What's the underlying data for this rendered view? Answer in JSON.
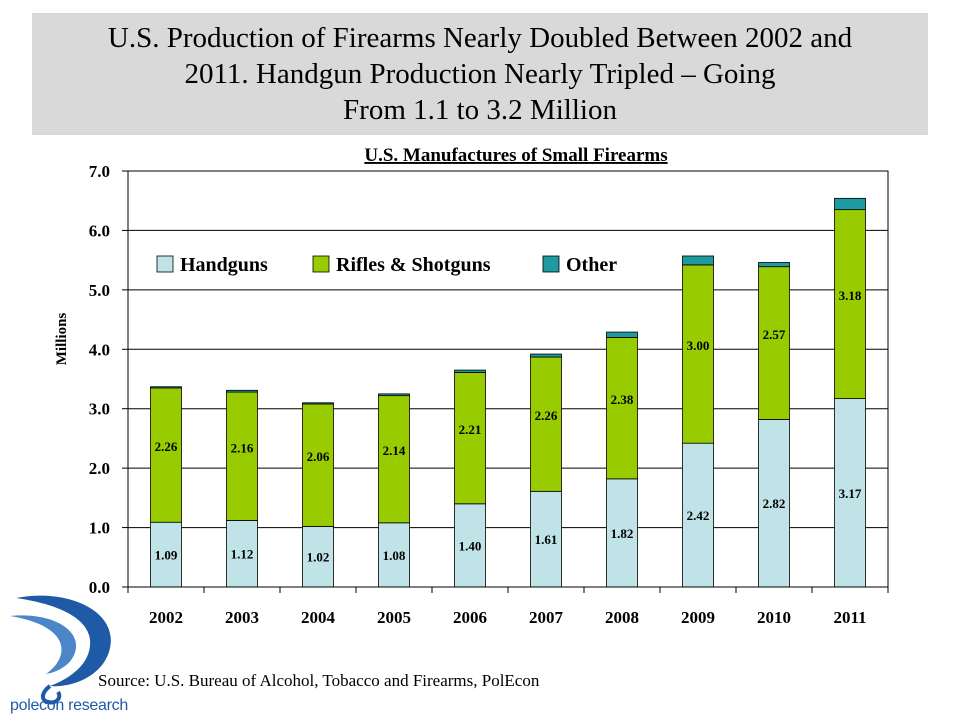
{
  "header": {
    "lines": [
      "U.S. Production of Firearms Nearly Doubled Between 2002 and",
      "2011.  Handgun Production Nearly Tripled – Going",
      "From 1.1 to 3.2 Million"
    ]
  },
  "source": "Source: U.S. Bureau of Alcohol, Tobacco and Firearms, PolEcon",
  "logo": {
    "text": "polecon research",
    "icon": "polecon-swirl-logo-icon"
  },
  "colors": {
    "handguns": "#bfe3e6",
    "rifles": "#99cc00",
    "other": "#1f9aa0",
    "grid": "#000000",
    "header_bg": "#d9d9d9"
  },
  "chart_data": {
    "type": "bar",
    "stacked": true,
    "title": "U.S. Manufactures of Small Firearms",
    "ylabel": "Millions",
    "xlabel": "",
    "ylim": [
      0,
      7
    ],
    "yticks": [
      "0.0",
      "1.0",
      "2.0",
      "3.0",
      "4.0",
      "5.0",
      "6.0",
      "7.0"
    ],
    "grid": true,
    "legend_position": "top-left",
    "categories": [
      "2002",
      "2003",
      "2004",
      "2005",
      "2006",
      "2007",
      "2008",
      "2009",
      "2010",
      "2011"
    ],
    "series": [
      {
        "name": "Handguns",
        "values": [
          1.09,
          1.12,
          1.02,
          1.08,
          1.4,
          1.61,
          1.82,
          2.42,
          2.82,
          3.17
        ],
        "labels": [
          "1.09",
          "1.12",
          "1.02",
          "1.08",
          "1.40",
          "1.61",
          "1.82",
          "2.42",
          "2.82",
          "3.17"
        ]
      },
      {
        "name": "Rifles & Shotguns",
        "values": [
          2.26,
          2.16,
          2.06,
          2.14,
          2.21,
          2.26,
          2.38,
          3.0,
          2.57,
          3.18
        ],
        "labels": [
          "2.26",
          "2.16",
          "2.06",
          "2.14",
          "2.21",
          "2.26",
          "2.38",
          "3.00",
          "2.57",
          "3.18"
        ]
      },
      {
        "name": "Other",
        "values": [
          0.02,
          0.03,
          0.02,
          0.03,
          0.04,
          0.05,
          0.09,
          0.15,
          0.07,
          0.19
        ]
      }
    ]
  }
}
